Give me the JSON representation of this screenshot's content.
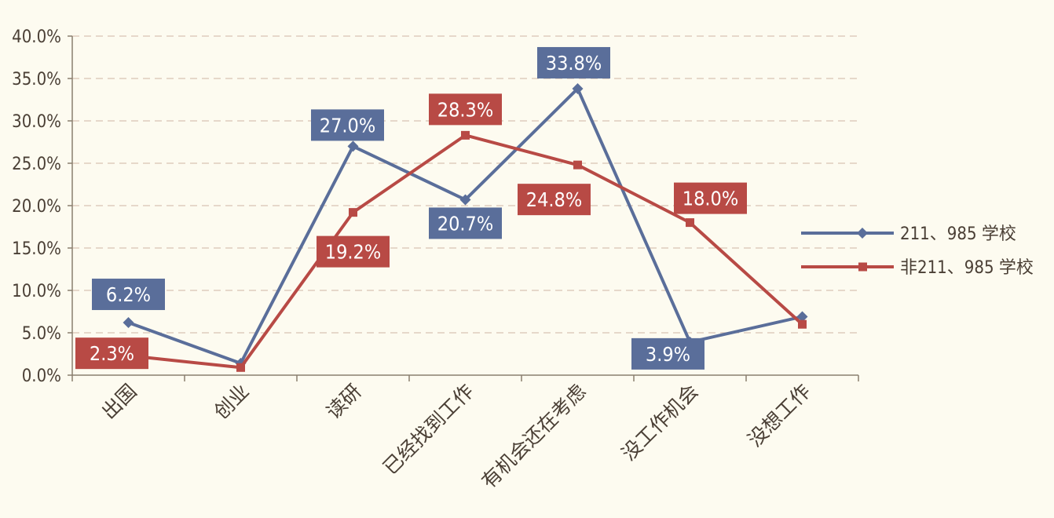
{
  "chart_data": {
    "type": "line",
    "categories": [
      "出国",
      "创业",
      "读研",
      "已经找到工作",
      "有机会还在考虑",
      "没工作机会",
      "没想工作"
    ],
    "series": [
      {
        "name": "211、985 学校",
        "values": [
          6.2,
          1.4,
          27.0,
          20.7,
          33.8,
          3.9,
          6.9
        ],
        "data_labels": [
          "6.2%",
          "",
          "27.0%",
          "20.7%",
          "33.8%",
          "3.9%",
          ""
        ],
        "color": "#5a6e9a",
        "marker": "diamond"
      },
      {
        "name": "非211、985 学校",
        "values": [
          2.3,
          0.9,
          19.2,
          28.3,
          24.8,
          18.0,
          6.0
        ],
        "data_labels": [
          "2.3%",
          "",
          "19.2%",
          "28.3%",
          "24.8%",
          "18.0%",
          ""
        ],
        "color": "#b84a45",
        "marker": "square"
      }
    ],
    "y_ticks": [
      "0.0%",
      "5.0%",
      "10.0%",
      "15.0%",
      "20.0%",
      "25.0%",
      "30.0%",
      "35.0%",
      "40.0%"
    ],
    "ylim": [
      0,
      40
    ],
    "grid": "horizontal-dashed",
    "legend_position": "right",
    "colors": {
      "background": "#fdfbf0",
      "axis": "#8a7f6f",
      "gridline": "#d9c4b4",
      "tick_text": "#4a3f35",
      "label_text": "#ffffff"
    }
  }
}
